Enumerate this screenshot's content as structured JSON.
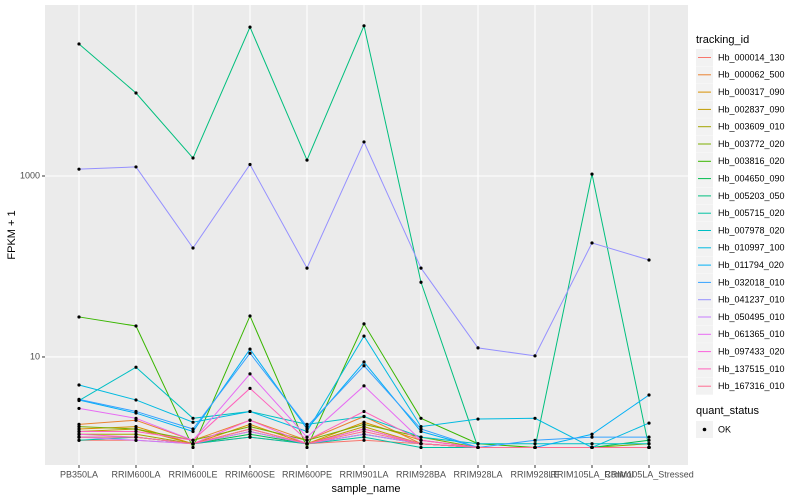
{
  "chart_data": {
    "type": "line",
    "log_scale": true,
    "grid": true,
    "x_label": "sample_name",
    "y_label": "FPKM + 1",
    "legend_title": "tracking_id",
    "legend_position": "right",
    "shape_legend_title": "quant_status",
    "shape_legend_entries": [
      "OK"
    ],
    "categories": [
      "PB350LA",
      "RRIM600LA",
      "RRIM600LE",
      "RRIM600SE",
      "RRIM600PE",
      "RRIM901LA",
      "RRIM928BA",
      "RRIM928LA",
      "RRIM928LE",
      "RRIM105LA_Control",
      "RRIM105LA_Stressed"
    ],
    "ylim": [
      0.64,
      77600
    ],
    "yticks": [
      10,
      1000
    ],
    "series": [
      {
        "name": "Hb_000014_130",
        "color": "#F8766D",
        "values": [
          1.2,
          1.2,
          1.1,
          1.3,
          1.1,
          1.2,
          1.1,
          1,
          1,
          1,
          1
        ]
      },
      {
        "name": "Hb_000062_500",
        "color": "#EA8331",
        "values": [
          1.8,
          2.0,
          1.2,
          2.0,
          1.2,
          2.2,
          1.1,
          1,
          1,
          1,
          1
        ]
      },
      {
        "name": "Hb_000317_090",
        "color": "#D89000",
        "values": [
          1.6,
          1.7,
          1.1,
          1.8,
          1.1,
          1.9,
          1.2,
          1,
          1,
          1,
          1
        ]
      },
      {
        "name": "Hb_002837_090",
        "color": "#C09B00",
        "values": [
          1.5,
          1.6,
          1.1,
          1.6,
          1.1,
          1.7,
          1.1,
          1,
          1,
          1,
          1
        ]
      },
      {
        "name": "Hb_003609_010",
        "color": "#A3A500",
        "values": [
          1.4,
          1.4,
          1.1,
          1.5,
          1.1,
          1.6,
          1.1,
          1,
          1,
          1,
          1
        ]
      },
      {
        "name": "Hb_003772_020",
        "color": "#7CAE00",
        "values": [
          1.7,
          1.6,
          1.2,
          1.7,
          1.2,
          1.8,
          1.3,
          1,
          1,
          1,
          1.1
        ]
      },
      {
        "name": "Hb_003816_020",
        "color": "#39B600",
        "values": [
          27.7,
          22,
          1,
          28.4,
          1,
          23.2,
          2.1,
          1.1,
          1,
          1,
          1
        ]
      },
      {
        "name": "Hb_004650_090",
        "color": "#00BB4E",
        "values": [
          1.3,
          1.3,
          1.1,
          1.4,
          1.1,
          1.4,
          1.1,
          1,
          1,
          1,
          1.2
        ]
      },
      {
        "name": "Hb_005203_050",
        "color": "#00BF7D",
        "values": [
          28800,
          8260,
          1580,
          44200,
          1500,
          45700,
          67,
          1,
          1,
          1050,
          1
        ]
      },
      {
        "name": "Hb_005715_020",
        "color": "#00C1A3",
        "values": [
          1.2,
          1.3,
          1.1,
          1.3,
          1.1,
          1.3,
          1,
          1,
          1,
          1,
          1
        ]
      },
      {
        "name": "Hb_007978_020",
        "color": "#00BFC4",
        "values": [
          3.3,
          7.7,
          2.1,
          2.5,
          1.8,
          2.2,
          1.3,
          1.1,
          1.1,
          1.1,
          1.1
        ]
      },
      {
        "name": "Hb_010997_100",
        "color": "#00BAE0",
        "values": [
          4.9,
          3.35,
          1.9,
          2.5,
          1.5,
          17,
          1.7,
          2.06,
          2.1,
          1,
          1.86
        ]
      },
      {
        "name": "Hb_011794_020",
        "color": "#00B0F6",
        "values": [
          3.35,
          2.4,
          1.5,
          12.2,
          1.6,
          8.8,
          1.5,
          1,
          1,
          1.4,
          3.8
        ]
      },
      {
        "name": "Hb_032018_010",
        "color": "#35A2FF",
        "values": [
          3.4,
          2.5,
          1.6,
          11,
          1.7,
          8,
          1.6,
          1,
          1.2,
          1.3,
          1.3
        ]
      },
      {
        "name": "Hb_041237_010",
        "color": "#9590FF",
        "values": [
          1190,
          1260,
          160,
          1340,
          96,
          2380,
          96,
          12.6,
          10.3,
          182,
          118
        ]
      },
      {
        "name": "Hb_050495_010",
        "color": "#C77CFF",
        "values": [
          1.3,
          1.2,
          1.1,
          1.5,
          1.1,
          1.4,
          1.1,
          1,
          1,
          1,
          1
        ]
      },
      {
        "name": "Hb_061365_010",
        "color": "#E76BF3",
        "values": [
          2.7,
          2.1,
          1.2,
          6.5,
          1.3,
          4.8,
          1.2,
          1,
          1,
          1,
          1
        ]
      },
      {
        "name": "Hb_097433_020",
        "color": "#FA62DB",
        "values": [
          1.4,
          1.3,
          1.1,
          2.0,
          1.1,
          1.6,
          1.1,
          1,
          1,
          1,
          1
        ]
      },
      {
        "name": "Hb_137515_010",
        "color": "#FF62BC",
        "values": [
          1.5,
          1.5,
          1.2,
          4.5,
          1.2,
          2.5,
          1.2,
          1,
          1,
          1,
          1
        ]
      },
      {
        "name": "Hb_167316_010",
        "color": "#FF6C91",
        "values": [
          1.3,
          1.3,
          1.1,
          1.6,
          1.1,
          1.5,
          1.1,
          1,
          1,
          1,
          1
        ]
      }
    ]
  }
}
